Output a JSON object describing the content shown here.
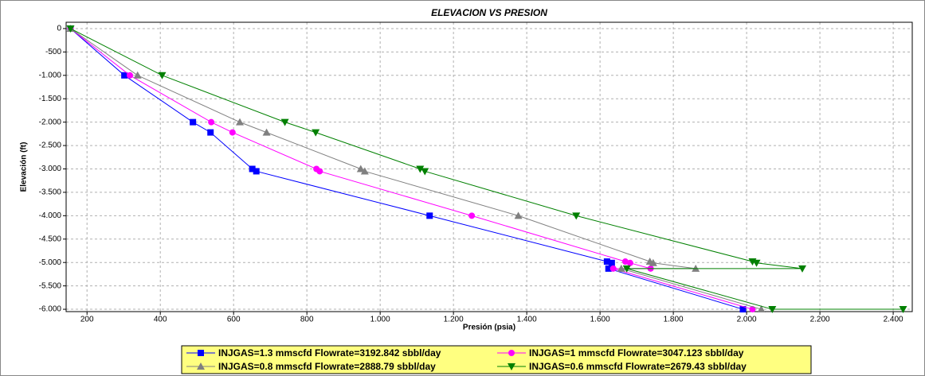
{
  "chart_data": {
    "type": "scatter-line",
    "title": "ELEVACION VS PRESION",
    "x_label": "Presión (psia)",
    "y_label": "Elevación (ft)",
    "xlim": [
      143,
      2452
    ],
    "ylim": [
      -6050,
      135
    ],
    "xticks": [
      200,
      400,
      600,
      800,
      {
        "value": 1000,
        "label": "1.000"
      },
      {
        "value": 1200,
        "label": "1.200"
      },
      {
        "value": 1400,
        "label": "1.400"
      },
      {
        "value": 1600,
        "label": "1.600"
      },
      {
        "value": 1800,
        "label": "1.800"
      },
      {
        "value": 2000,
        "label": "2.000"
      },
      {
        "value": 2200,
        "label": "2.200"
      },
      {
        "value": 2400,
        "label": "2.400"
      }
    ],
    "yticks": [
      0,
      -500,
      {
        "value": -1000,
        "label": "-1.000"
      },
      {
        "value": -1500,
        "label": "-1.500"
      },
      {
        "value": -2000,
        "label": "-2.000"
      },
      {
        "value": -2500,
        "label": "-2.500"
      },
      {
        "value": -3000,
        "label": "-3.000"
      },
      {
        "value": -3500,
        "label": "-3.500"
      },
      {
        "value": -4000,
        "label": "-4.000"
      },
      {
        "value": -4500,
        "label": "-4.500"
      },
      {
        "value": -5000,
        "label": "-5.000"
      },
      {
        "value": -5500,
        "label": "-5.500"
      },
      {
        "value": -6000,
        "label": "-6.000"
      }
    ],
    "grid": true,
    "legend": "bottom",
    "legend_color": "#ffff80",
    "series": [
      {
        "name": "INJGAS=1.3 mmscfd Flowrate=3192.842 sbbl/day",
        "color": "#0000ff",
        "marker": "square",
        "x": [
          155,
          302,
          489,
          537,
          651,
          662,
          1135,
          1619,
          1632,
          1623,
          1990
        ],
        "values": [
          0,
          -1000,
          -2000,
          -2220,
          -3000,
          -3050,
          -4000,
          -4980,
          -5010,
          -5130,
          -6000
        ]
      },
      {
        "name": "INJGAS=1 mmscfd Flowrate=3047.123 sbbl/day",
        "color": "#ff00ff",
        "marker": "circle",
        "x": [
          155,
          317,
          539,
          597,
          826,
          835,
          1250,
          1669,
          1682,
          1738,
          1636,
          2016
        ],
        "values": [
          0,
          -1000,
          -2000,
          -2220,
          -3000,
          -3050,
          -4000,
          -4980,
          -5010,
          -5130,
          -5130,
          -6000
        ]
      },
      {
        "name": "INJGAS=0.8 mmscfd Flowrate=2888.79 sbbl/day",
        "color": "#808080",
        "marker": "triangle-up",
        "x": [
          155,
          338,
          617,
          690,
          947,
          958,
          1377,
          1736,
          1745,
          1861,
          1658,
          2040
        ],
        "values": [
          0,
          -1000,
          -2000,
          -2220,
          -3000,
          -3050,
          -4000,
          -4980,
          -5010,
          -5130,
          -5130,
          -6000
        ]
      },
      {
        "name": "INJGAS=0.6 mmscfd Flowrate=2679.43 sbbl/day",
        "color": "#008000",
        "marker": "triangle-down",
        "x": [
          155,
          405,
          740,
          824,
          1109,
          1122,
          1535,
          2016,
          2027,
          2152,
          1673,
          2070,
          2427
        ],
        "values": [
          0,
          -1000,
          -2000,
          -2220,
          -3000,
          -3050,
          -4000,
          -4980,
          -5010,
          -5130,
          -5130,
          -6000,
          -6000
        ]
      }
    ]
  }
}
